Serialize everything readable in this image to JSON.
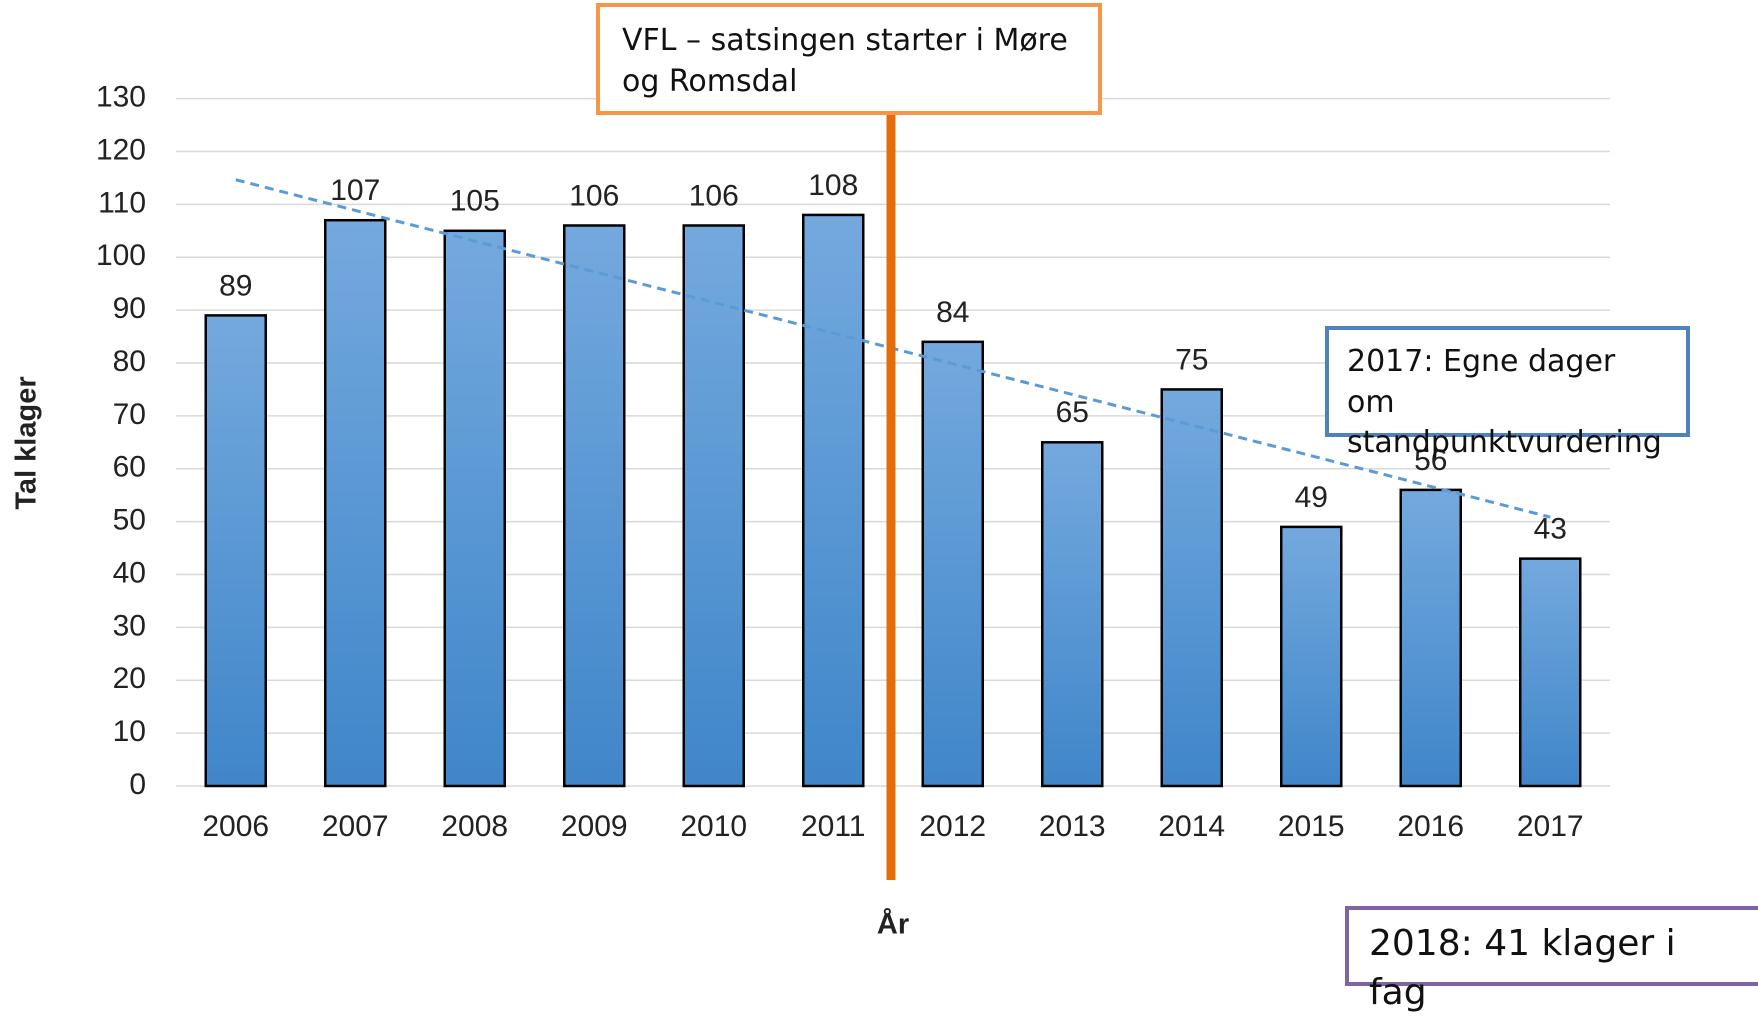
{
  "chart_data": {
    "type": "bar",
    "categories": [
      "2006",
      "2007",
      "2008",
      "2009",
      "2010",
      "2011",
      "2012",
      "2013",
      "2014",
      "2015",
      "2016",
      "2017"
    ],
    "values": [
      89,
      107,
      105,
      106,
      106,
      108,
      84,
      65,
      75,
      49,
      56,
      43
    ],
    "color": "#5b9bd5",
    "ylim": [
      0,
      130
    ],
    "yticks": [
      0,
      10,
      20,
      30,
      40,
      50,
      60,
      70,
      80,
      90,
      100,
      110,
      120,
      130
    ],
    "grid": true,
    "trendline": true,
    "xlabel": "År",
    "ylabel": "Tal klager",
    "annotations": [
      {
        "text": "VFL – satsingen starter i Møre og Romsdal",
        "color": "#f79646"
      },
      {
        "text": "2017: Egne dager om standpunktvurdering",
        "color": "#4f81bd"
      },
      {
        "text": "2018: 41 klager i fag",
        "color": "#8064a2"
      }
    ]
  }
}
